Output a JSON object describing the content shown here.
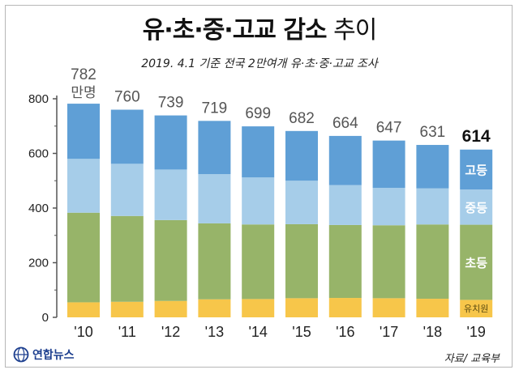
{
  "chart_data": {
    "type": "bar",
    "stacked": true,
    "title_bold": "유·초·중·고교 감소",
    "title_normal": "추이",
    "subtitle": "2019. 4.1 기준 전국 2만여개 유·초·중·고교 조사",
    "categories": [
      "'10",
      "'11",
      "'12",
      "'13",
      "'14",
      "'15",
      "'16",
      "'17",
      "'18",
      "'19"
    ],
    "totals": [
      782,
      760,
      739,
      719,
      699,
      682,
      664,
      647,
      631,
      614
    ],
    "first_total_unit": "만명",
    "series": [
      {
        "name": "유치원",
        "color": "#f7c64a",
        "values": [
          55,
          57,
          60,
          66,
          67,
          70,
          71,
          70,
          68,
          64
        ]
      },
      {
        "name": "초등",
        "color": "#97b469",
        "values": [
          328,
          314,
          296,
          278,
          273,
          271,
          267,
          267,
          272,
          275
        ]
      },
      {
        "name": "중등",
        "color": "#a6cde9",
        "values": [
          197,
          191,
          185,
          180,
          172,
          159,
          146,
          137,
          132,
          129
        ]
      },
      {
        "name": "고등",
        "color": "#5f9fd6",
        "values": [
          202,
          198,
          198,
          195,
          187,
          182,
          180,
          173,
          159,
          146
        ]
      }
    ],
    "ylim": [
      0,
      800
    ],
    "yticks": [
      0,
      200,
      400,
      600,
      800
    ],
    "grid": false,
    "legend_placement": "inside-last-bar"
  },
  "footer": {
    "logo_text": "연합뉴스",
    "source": "자료/ 교육부"
  }
}
